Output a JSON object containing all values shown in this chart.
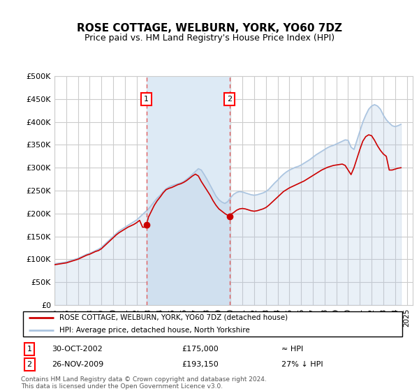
{
  "title": "ROSE COTTAGE, WELBURN, YORK, YO60 7DZ",
  "subtitle": "Price paid vs. HM Land Registry's House Price Index (HPI)",
  "ytick_values": [
    0,
    50000,
    100000,
    150000,
    200000,
    250000,
    300000,
    350000,
    400000,
    450000,
    500000
  ],
  "ylim": [
    0,
    500000
  ],
  "xlim_start": 1995.0,
  "xlim_end": 2025.5,
  "sale1_x": 2002.83,
  "sale1_y": 175000,
  "sale2_x": 2009.9,
  "sale2_y": 193150,
  "sale1_label": "30-OCT-2002",
  "sale1_price": "£175,000",
  "sale1_vs": "≈ HPI",
  "sale2_label": "26-NOV-2009",
  "sale2_price": "£193,150",
  "sale2_vs": "27% ↓ HPI",
  "legend_line1": "ROSE COTTAGE, WELBURN, YORK, YO60 7DZ (detached house)",
  "legend_line2": "HPI: Average price, detached house, North Yorkshire",
  "footer": "Contains HM Land Registry data © Crown copyright and database right 2024.\nThis data is licensed under the Open Government Licence v3.0.",
  "hpi_color": "#aac4e0",
  "sale_line_color": "#cc0000",
  "vline_color": "#e06060",
  "bg_band_color": "#ddeaf5",
  "grid_color": "#cccccc",
  "title_color": "#000000",
  "hpi_data_x": [
    1995.0,
    1995.25,
    1995.5,
    1995.75,
    1996.0,
    1996.25,
    1996.5,
    1996.75,
    1997.0,
    1997.25,
    1997.5,
    1997.75,
    1998.0,
    1998.25,
    1998.5,
    1998.75,
    1999.0,
    1999.25,
    1999.5,
    1999.75,
    2000.0,
    2000.25,
    2000.5,
    2000.75,
    2001.0,
    2001.25,
    2001.5,
    2001.75,
    2002.0,
    2002.25,
    2002.5,
    2002.75,
    2003.0,
    2003.25,
    2003.5,
    2003.75,
    2004.0,
    2004.25,
    2004.5,
    2004.75,
    2005.0,
    2005.25,
    2005.5,
    2005.75,
    2006.0,
    2006.25,
    2006.5,
    2006.75,
    2007.0,
    2007.25,
    2007.5,
    2007.75,
    2008.0,
    2008.25,
    2008.5,
    2008.75,
    2009.0,
    2009.25,
    2009.5,
    2009.75,
    2010.0,
    2010.25,
    2010.5,
    2010.75,
    2011.0,
    2011.25,
    2011.5,
    2011.75,
    2012.0,
    2012.25,
    2012.5,
    2012.75,
    2013.0,
    2013.25,
    2013.5,
    2013.75,
    2014.0,
    2014.25,
    2014.5,
    2014.75,
    2015.0,
    2015.25,
    2015.5,
    2015.75,
    2016.0,
    2016.25,
    2016.5,
    2016.75,
    2017.0,
    2017.25,
    2017.5,
    2017.75,
    2018.0,
    2018.25,
    2018.5,
    2018.75,
    2019.0,
    2019.25,
    2019.5,
    2019.75,
    2020.0,
    2020.25,
    2020.5,
    2020.75,
    2021.0,
    2021.25,
    2021.5,
    2021.75,
    2022.0,
    2022.25,
    2022.5,
    2022.75,
    2023.0,
    2023.25,
    2023.5,
    2023.75,
    2024.0,
    2024.25,
    2024.5
  ],
  "hpi_data_y": [
    90000,
    91000,
    92000,
    93000,
    94000,
    96000,
    98000,
    100000,
    102000,
    105000,
    108000,
    111000,
    113000,
    116000,
    119000,
    122000,
    126000,
    132000,
    138000,
    144000,
    150000,
    156000,
    162000,
    166000,
    170000,
    174000,
    178000,
    182000,
    186000,
    192000,
    198000,
    204000,
    210000,
    218000,
    226000,
    234000,
    240000,
    248000,
    254000,
    258000,
    261000,
    263000,
    265000,
    267000,
    270000,
    275000,
    280000,
    286000,
    292000,
    298000,
    295000,
    285000,
    274000,
    262000,
    250000,
    238000,
    230000,
    225000,
    222000,
    226000,
    235000,
    242000,
    246000,
    248000,
    247000,
    245000,
    243000,
    241000,
    240000,
    241000,
    243000,
    245000,
    248000,
    253000,
    260000,
    267000,
    273000,
    280000,
    286000,
    291000,
    295000,
    298000,
    301000,
    303000,
    306000,
    310000,
    314000,
    318000,
    323000,
    328000,
    332000,
    336000,
    340000,
    344000,
    347000,
    349000,
    352000,
    355000,
    358000,
    361000,
    360000,
    345000,
    340000,
    360000,
    380000,
    400000,
    415000,
    428000,
    435000,
    438000,
    435000,
    428000,
    415000,
    405000,
    398000,
    392000,
    390000,
    392000,
    395000
  ],
  "sold_line_x": [
    1995.0,
    1995.25,
    1995.5,
    1995.75,
    1996.0,
    1996.25,
    1996.5,
    1996.75,
    1997.0,
    1997.25,
    1997.5,
    1997.75,
    1998.0,
    1998.25,
    1998.5,
    1998.75,
    1999.0,
    1999.25,
    1999.5,
    1999.75,
    2000.0,
    2000.25,
    2000.5,
    2000.75,
    2001.0,
    2001.25,
    2001.5,
    2001.75,
    2002.0,
    2002.25,
    2002.5,
    2002.75,
    2002.83,
    2003.0,
    2003.25,
    2003.5,
    2003.75,
    2004.0,
    2004.25,
    2004.5,
    2004.75,
    2005.0,
    2005.25,
    2005.5,
    2005.75,
    2006.0,
    2006.25,
    2006.5,
    2006.75,
    2007.0,
    2007.25,
    2007.5,
    2007.75,
    2008.0,
    2008.25,
    2008.5,
    2008.75,
    2009.0,
    2009.25,
    2009.5,
    2009.75,
    2009.9,
    2010.0,
    2010.25,
    2010.5,
    2010.75,
    2011.0,
    2011.25,
    2011.5,
    2011.75,
    2012.0,
    2012.25,
    2012.5,
    2012.75,
    2013.0,
    2013.25,
    2013.5,
    2013.75,
    2014.0,
    2014.25,
    2014.5,
    2014.75,
    2015.0,
    2015.25,
    2015.5,
    2015.75,
    2016.0,
    2016.25,
    2016.5,
    2016.75,
    2017.0,
    2017.25,
    2017.5,
    2017.75,
    2018.0,
    2018.25,
    2018.5,
    2018.75,
    2019.0,
    2019.25,
    2019.5,
    2019.75,
    2020.0,
    2020.25,
    2020.5,
    2020.75,
    2021.0,
    2021.25,
    2021.5,
    2021.75,
    2022.0,
    2022.25,
    2022.5,
    2022.75,
    2023.0,
    2023.25,
    2023.5,
    2023.75,
    2024.0,
    2024.25,
    2024.5
  ],
  "sold_line_y": [
    88000,
    89000,
    90000,
    91000,
    92000,
    94000,
    96000,
    98000,
    100000,
    103000,
    106000,
    109000,
    111000,
    114000,
    117000,
    119000,
    123000,
    129000,
    135000,
    141000,
    147000,
    153000,
    158000,
    162000,
    166000,
    170000,
    173000,
    176000,
    180000,
    185000,
    170000,
    170000,
    175000,
    192000,
    205000,
    218000,
    228000,
    236000,
    245000,
    252000,
    255000,
    257000,
    260000,
    263000,
    265000,
    268000,
    272000,
    277000,
    282000,
    286000,
    282000,
    270000,
    260000,
    250000,
    240000,
    228000,
    218000,
    210000,
    205000,
    200000,
    196000,
    193150,
    198000,
    202000,
    207000,
    210000,
    211000,
    210000,
    208000,
    206000,
    205000,
    206000,
    208000,
    210000,
    213000,
    218000,
    224000,
    230000,
    236000,
    242000,
    248000,
    252000,
    256000,
    259000,
    262000,
    265000,
    268000,
    271000,
    275000,
    279000,
    283000,
    287000,
    291000,
    295000,
    298000,
    301000,
    303000,
    305000,
    306000,
    307000,
    308000,
    305000,
    295000,
    285000,
    300000,
    320000,
    340000,
    358000,
    368000,
    372000,
    370000,
    360000,
    348000,
    338000,
    330000,
    325000,
    295000,
    295000,
    297000,
    299000,
    300000
  ]
}
